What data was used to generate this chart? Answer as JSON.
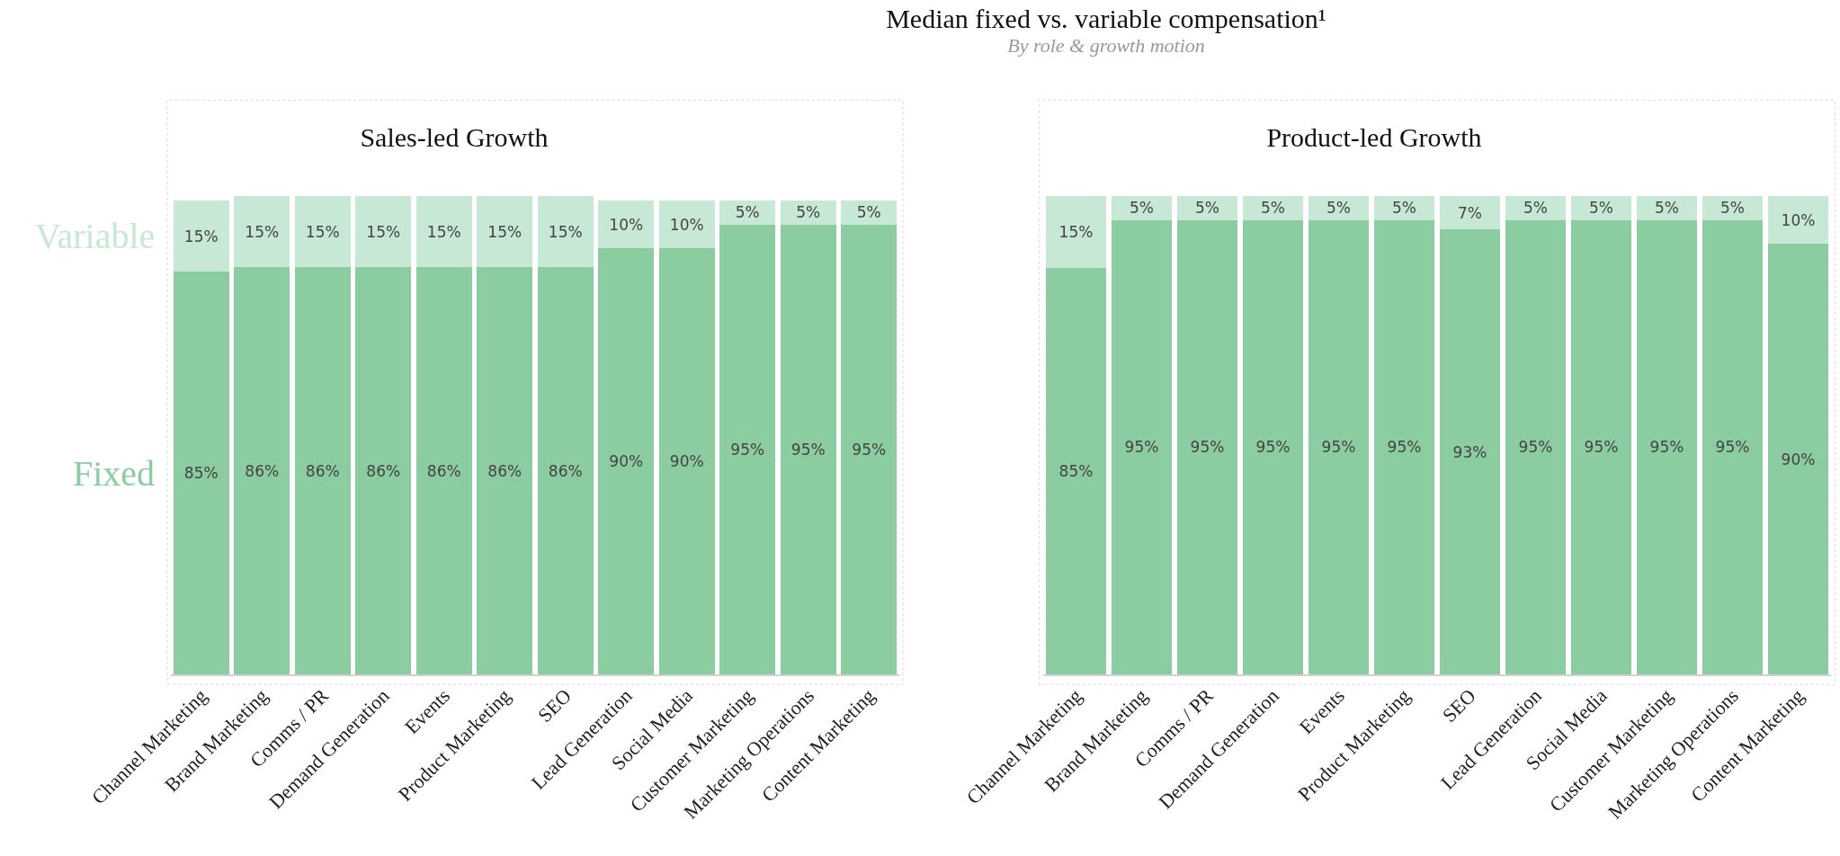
{
  "chart_data": [
    {
      "type": "bar",
      "title": "Sales-led Growth",
      "annotations": [
        "Median fixed vs. variable compensation¹",
        "By role & growth motion"
      ],
      "stacked": true,
      "legend": false,
      "grid": false,
      "tick_labels": "x",
      "categories": [
        "Channel Marketing",
        "Brand Marketing",
        "Comms / PR",
        "Demand Generation",
        "Events",
        "Product Marketing",
        "SEO",
        "Lead Generation",
        "Social Media",
        "Customer Marketing",
        "Marketing Operations",
        "Content Marketing"
      ],
      "series": [
        {
          "name": "Fixed",
          "color": "#8bcca0",
          "values": [
            85,
            86,
            86,
            86,
            86,
            86,
            86,
            90,
            90,
            95,
            95,
            95
          ],
          "value_labels": [
            "85%",
            "86%",
            "86%",
            "86%",
            "86%",
            "86%",
            "86%",
            "90%",
            "90%",
            "95%",
            "95%",
            "95%"
          ]
        },
        {
          "name": "Variable",
          "color": "#c8e8d6",
          "values": [
            15,
            15,
            15,
            15,
            15,
            15,
            15,
            10,
            10,
            5,
            5,
            5
          ],
          "value_labels": [
            "15%",
            "15%",
            "15%",
            "15%",
            "15%",
            "15%",
            "15%",
            "10%",
            "10%",
            "5%",
            "5%",
            "5%"
          ]
        }
      ]
    },
    {
      "type": "bar",
      "title": "Product-led Growth",
      "stacked": true,
      "legend": false,
      "grid": false,
      "tick_labels": "x",
      "categories": [
        "Channel Marketing",
        "Brand Marketing",
        "Comms / PR",
        "Demand Generation",
        "Events",
        "Product Marketing",
        "SEO",
        "Lead Generation",
        "Social Media",
        "Customer Marketing",
        "Marketing Operations",
        "Content Marketing"
      ],
      "series": [
        {
          "color": "#8bcca0",
          "values": [
            85,
            95,
            95,
            95,
            95,
            95,
            93,
            95,
            95,
            95,
            95,
            90
          ],
          "value_labels": [
            "85%",
            "95%",
            "95%",
            "95%",
            "95%",
            "95%",
            "93%",
            "95%",
            "95%",
            "95%",
            "95%",
            "90%"
          ]
        },
        {
          "color": "#c8e8d6",
          "values": [
            15,
            5,
            5,
            5,
            5,
            5,
            7,
            5,
            5,
            5,
            5,
            10
          ],
          "value_labels": [
            "15%",
            "5%",
            "5%",
            "5%",
            "5%",
            "5%",
            "7%",
            "5%",
            "5%",
            "5%",
            "5%",
            "10%"
          ]
        }
      ]
    }
  ]
}
